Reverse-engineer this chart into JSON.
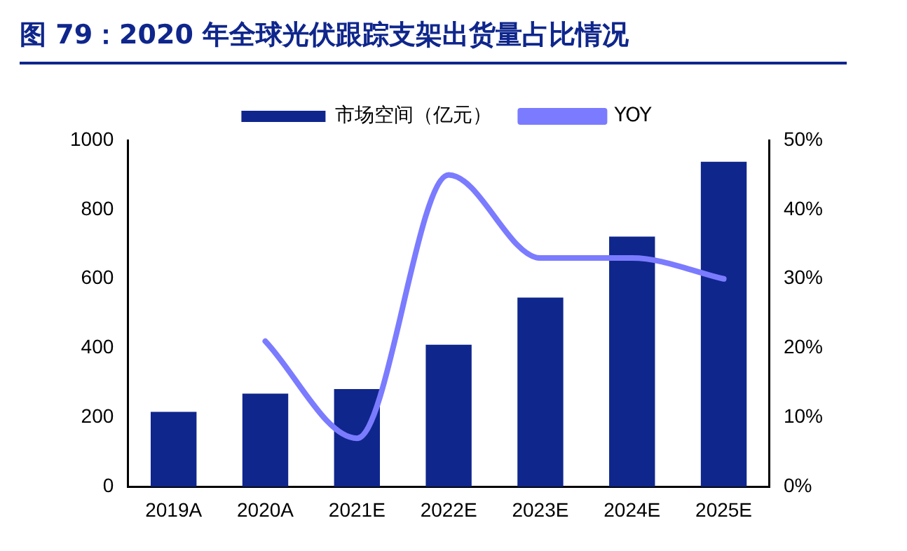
{
  "chart_data": {
    "type": "bar",
    "title": "图 79：2020 年全球光伏跟踪支架出货量占比情况",
    "categories": [
      "2019A",
      "2020A",
      "2021E",
      "2022E",
      "2023E",
      "2024E",
      "2025E"
    ],
    "series": [
      {
        "name": "市场空间（亿元）",
        "color": "#0f268c",
        "values": [
          216,
          269,
          282,
          410,
          546,
          722,
          938
        ]
      },
      {
        "name": "YOY",
        "type": "line",
        "axis": "y2",
        "color": "#7b7bff",
        "values": [
          null,
          21,
          7,
          45,
          33,
          33,
          30
        ]
      }
    ],
    "ylim": [
      0,
      1000
    ],
    "yticks": [
      0,
      200,
      400,
      600,
      800,
      1000
    ],
    "y2lim": [
      0,
      50
    ],
    "y2ticks": [
      {
        "value": 0,
        "label": "0%"
      },
      {
        "value": 10,
        "label": "10%"
      },
      {
        "value": 20,
        "label": "20%"
      },
      {
        "value": 30,
        "label": "30%"
      },
      {
        "value": 40,
        "label": "40%"
      },
      {
        "value": 50,
        "label": "50%"
      }
    ],
    "grid": false,
    "legend": "top"
  }
}
